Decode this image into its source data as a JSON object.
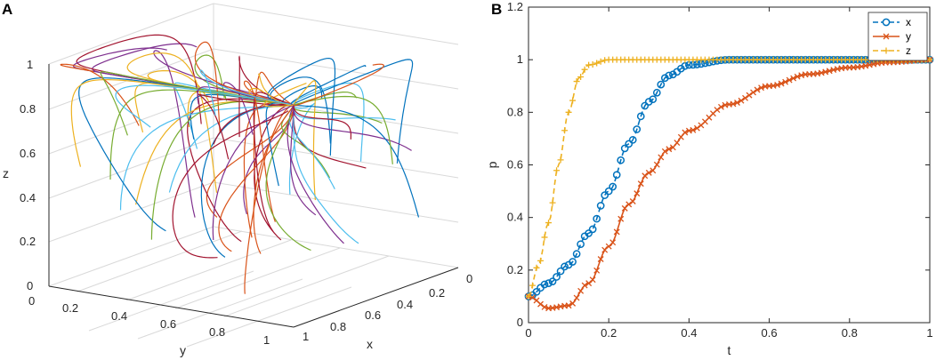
{
  "colors": {
    "x": "#0072BD",
    "y": "#D95319",
    "z": "#EDB120",
    "palette": [
      "#0072BD",
      "#D95319",
      "#EDB120",
      "#7E2F8E",
      "#77AC30",
      "#4DBEEE",
      "#A2142F"
    ]
  },
  "panel_a": {
    "label": "A",
    "axis_x_label": "x",
    "axis_y_label": "y",
    "axis_z_label": "z",
    "x_ticks": [
      "0",
      "0.2",
      "0.4",
      "0.6",
      "0.8",
      "1"
    ],
    "y_ticks": [
      "0",
      "0.2",
      "0.4",
      "0.6",
      "0.8",
      "1"
    ],
    "z_ticks": [
      "0",
      "0.2",
      "0.4",
      "0.6",
      "0.8",
      "1"
    ]
  },
  "panel_b": {
    "label": "B"
  },
  "chart_data": [
    {
      "type": "line",
      "title": "",
      "description_3d": "phase trajectories converging to (1,1,1)",
      "xlabel": "x",
      "ylabel": "y",
      "zlabel": "z",
      "xlim": [
        0,
        1
      ],
      "ylim": [
        0,
        1
      ],
      "zlim": [
        0,
        1
      ],
      "attractor": [
        1,
        1,
        1
      ]
    },
    {
      "type": "line",
      "xlabel": "t",
      "ylabel": "p",
      "xlim": [
        0,
        1
      ],
      "ylim": [
        0,
        1.2
      ],
      "x_ticks": [
        "0",
        "0.2",
        "0.4",
        "0.6",
        "0.8",
        "1"
      ],
      "y_ticks": [
        "0",
        "0.2",
        "0.4",
        "0.6",
        "0.8",
        "1",
        "1.2"
      ],
      "legend_position": "top-right",
      "series": [
        {
          "name": "x",
          "marker": "o",
          "line": "dashed",
          "t": [
            0,
            0.05,
            0.1,
            0.15,
            0.2,
            0.25,
            0.3,
            0.35,
            0.4,
            0.5,
            0.6,
            0.7,
            0.8,
            0.9,
            1.0
          ],
          "values": [
            0.1,
            0.15,
            0.22,
            0.34,
            0.5,
            0.68,
            0.84,
            0.94,
            0.98,
            1.0,
            1.0,
            1.0,
            1.0,
            1.0,
            1.0
          ]
        },
        {
          "name": "y",
          "marker": "x",
          "line": "solid",
          "t": [
            0,
            0.05,
            0.1,
            0.15,
            0.2,
            0.25,
            0.3,
            0.35,
            0.4,
            0.5,
            0.6,
            0.7,
            0.8,
            0.9,
            1.0
          ],
          "values": [
            0.1,
            0.055,
            0.065,
            0.15,
            0.29,
            0.45,
            0.57,
            0.66,
            0.73,
            0.83,
            0.9,
            0.945,
            0.97,
            0.99,
            1.0
          ]
        },
        {
          "name": "z",
          "marker": "+",
          "line": "dashed",
          "t": [
            0,
            0.025,
            0.05,
            0.075,
            0.1,
            0.125,
            0.15,
            0.2,
            0.3,
            0.4,
            0.5,
            0.6,
            0.7,
            0.8,
            0.9,
            1.0
          ],
          "values": [
            0.1,
            0.22,
            0.38,
            0.6,
            0.8,
            0.93,
            0.98,
            1.0,
            1.0,
            1.0,
            1.0,
            1.0,
            1.0,
            1.0,
            1.0,
            1.0
          ]
        }
      ]
    }
  ]
}
